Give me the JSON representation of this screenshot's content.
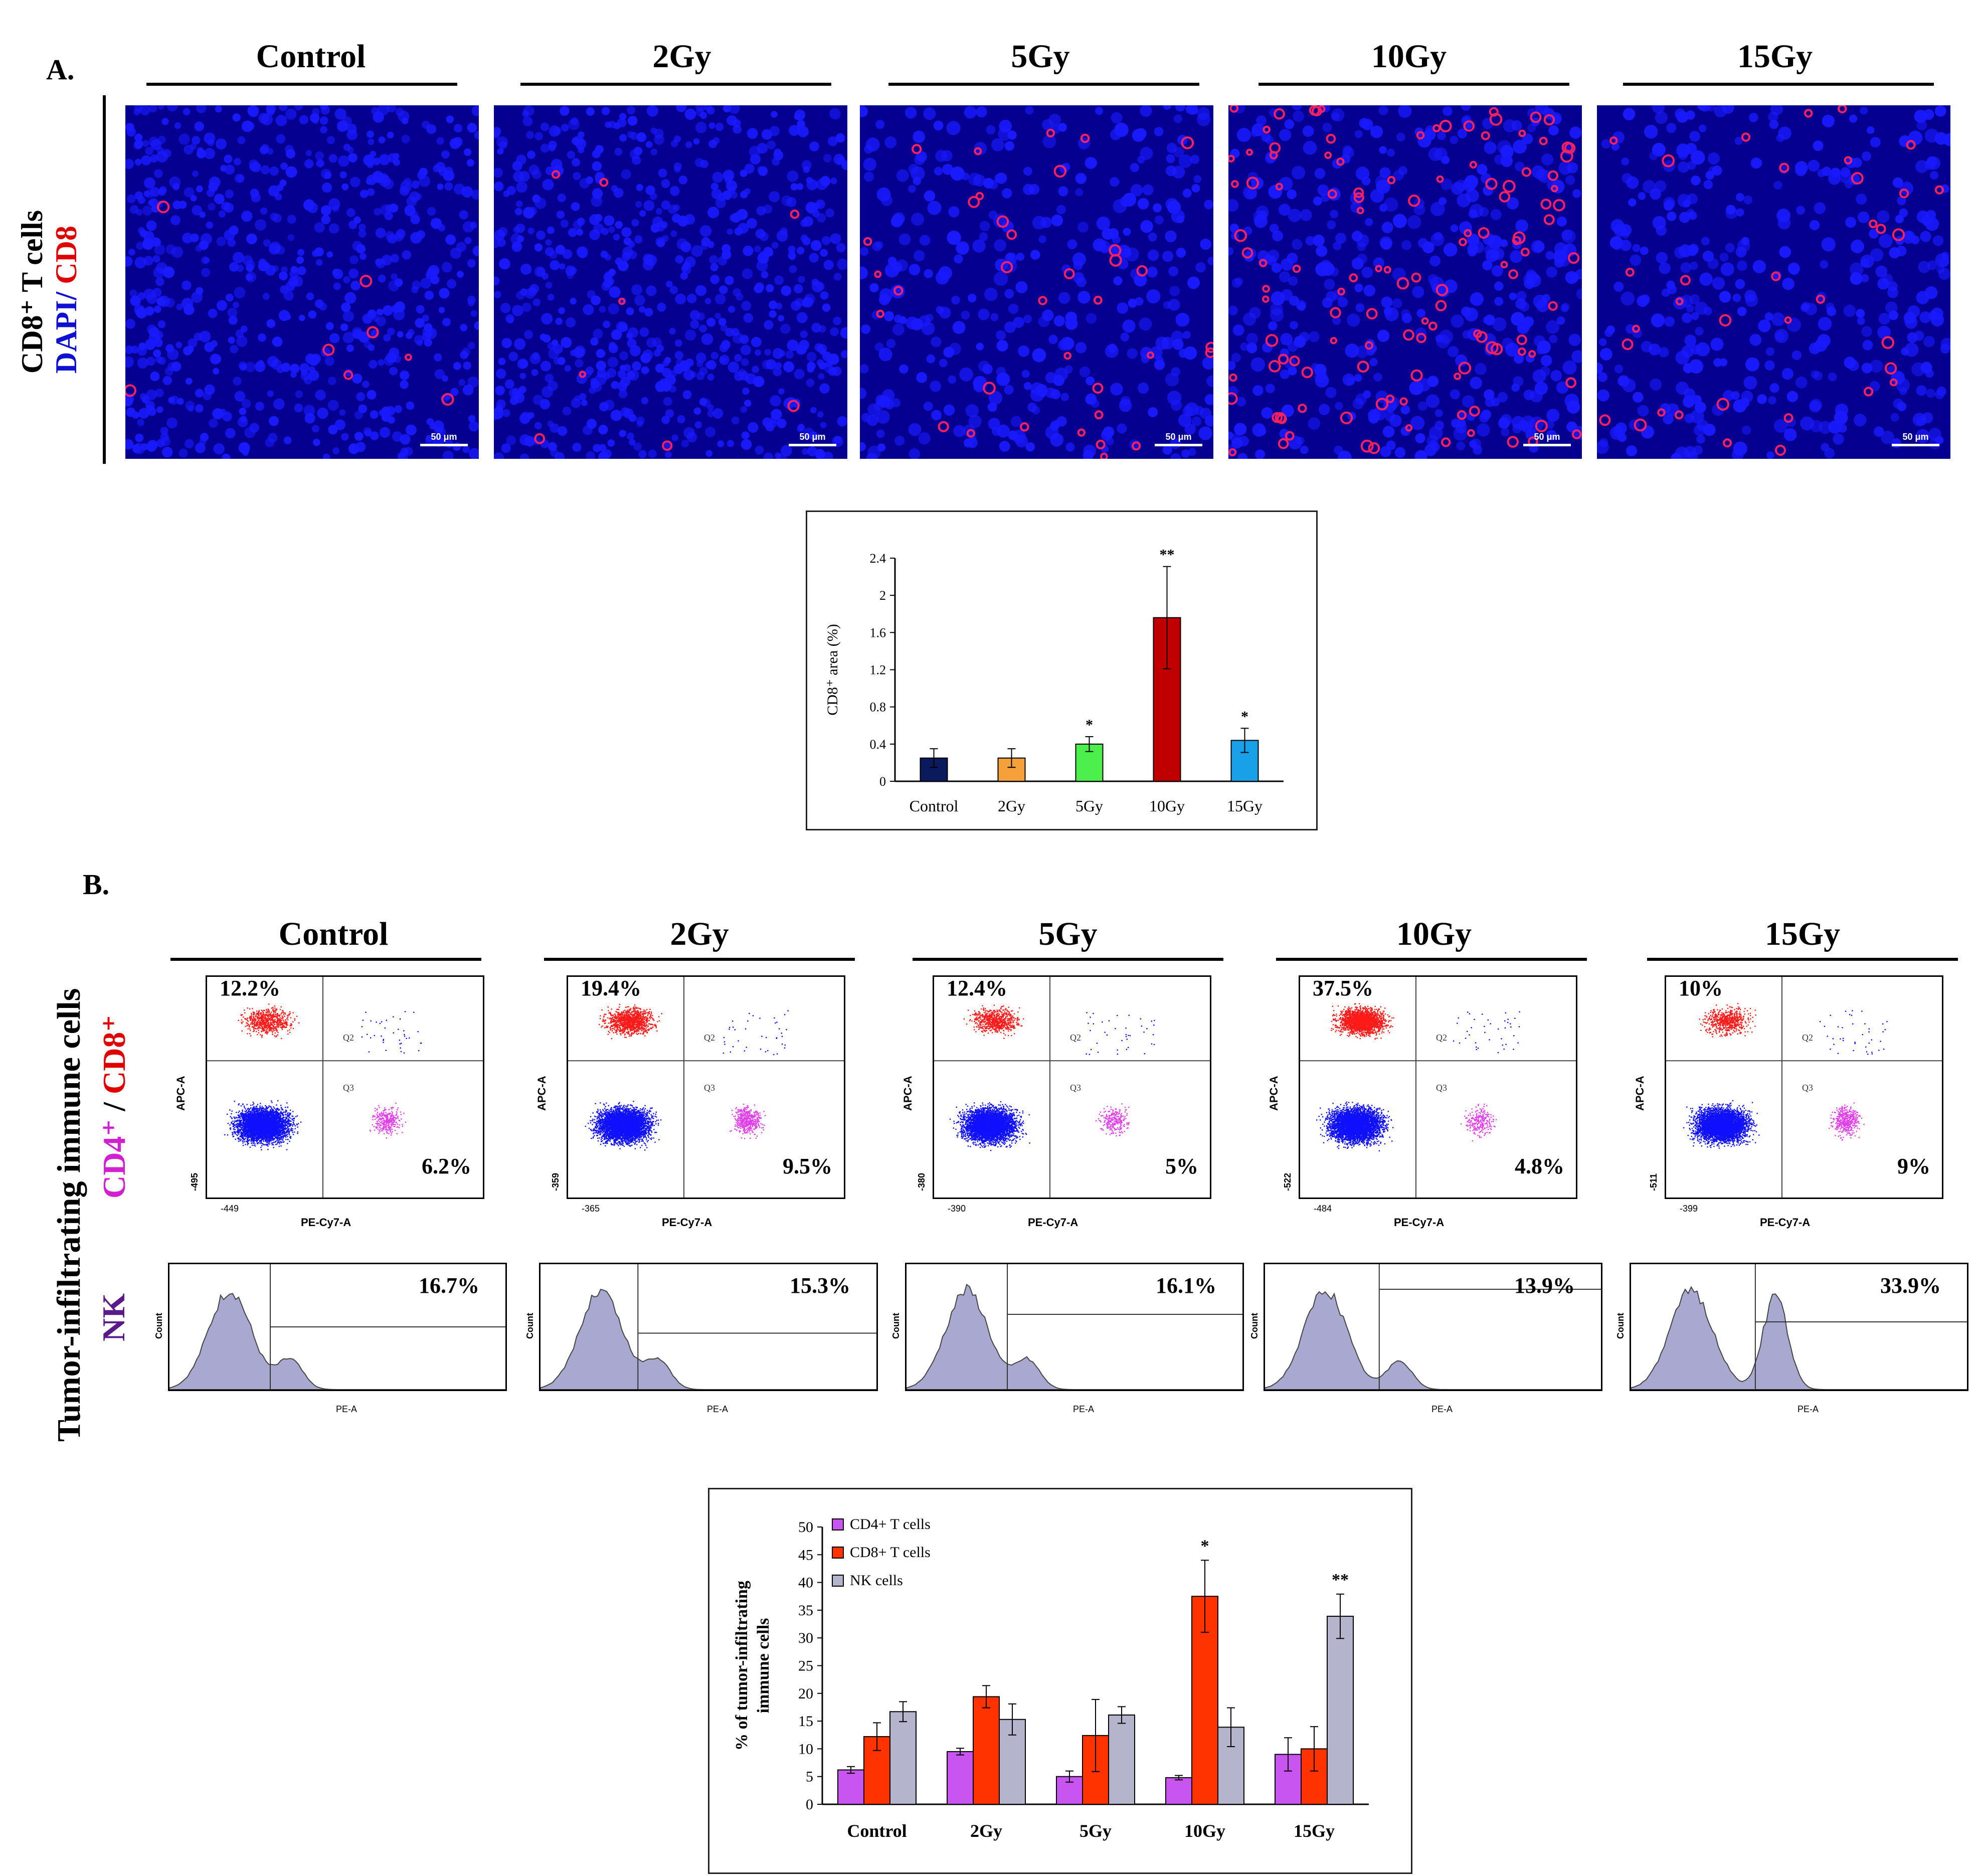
{
  "panel_a": {
    "label": "A.",
    "row_label_title": "CD8⁺ T cells",
    "row_label_dapi": "DAPI/",
    "row_label_cd8": " CD8",
    "conditions": [
      "Control",
      "2Gy",
      "5Gy",
      "10Gy",
      "15Gy"
    ],
    "scalebar": "50 μm",
    "colors": {
      "nuclei": "#1a1aff",
      "background": "#05008f",
      "cd8": "#ff2060"
    }
  },
  "panel_b": {
    "label": "B.",
    "row_label_main": "Tumor-infiltrating immune cells",
    "row_label_cd4": "CD4⁺",
    "row_label_sep": " / ",
    "row_label_cd8": "CD8⁺",
    "row_label_nk": "NK",
    "conditions": [
      "Control",
      "2Gy",
      "5Gy",
      "10Gy",
      "15Gy"
    ],
    "scatter": {
      "x_axis": "PE-Cy7-A",
      "y_axis": "APC-A",
      "quad_q2": "Q2",
      "quad_q3": "Q3",
      "cd8_pct": [
        "12.2%",
        "19.4%",
        "12.4%",
        "37.5%",
        "10%"
      ],
      "cd4_pct": [
        "6.2%",
        "9.5%",
        "5%",
        "4.8%",
        "9%"
      ],
      "x_min": [
        "-449",
        "-365",
        "-390",
        "-484",
        "-399"
      ],
      "y_min": [
        "-495",
        "-359",
        "-380",
        "-522",
        "-511"
      ],
      "colors": {
        "cd8": "#ff1a1a",
        "cd4": "#e040e8",
        "neg": "#1010ff"
      }
    },
    "histogram": {
      "x_axis": "PE-A",
      "y_axis": "Count",
      "nk_pct": [
        "16.7%",
        "15.3%",
        "16.1%",
        "13.9%",
        "33.9%"
      ],
      "fill": "#a8a8d0"
    }
  },
  "chart_data": [
    {
      "type": "bar",
      "ylabel": "CD8⁺ area (%)",
      "categories": [
        "Control",
        "2Gy",
        "5Gy",
        "10Gy",
        "15Gy"
      ],
      "values": [
        0.25,
        0.25,
        0.4,
        1.76,
        0.44
      ],
      "errors": [
        0.1,
        0.1,
        0.08,
        0.55,
        0.13
      ],
      "significance": [
        "",
        "",
        "*",
        "**",
        "*"
      ],
      "colors": [
        "#0a1a5c",
        "#f5a03a",
        "#4cef4c",
        "#c00000",
        "#18a0e8"
      ],
      "yticks": [
        "0",
        "0.4",
        "0.8",
        "1.2",
        "1.6",
        "2",
        "2.4"
      ],
      "ylim": [
        0,
        2.4
      ],
      "grid": false
    },
    {
      "type": "bar",
      "ylabel_line1": "% of tumor-infiltrating",
      "ylabel_line2": "immune cells",
      "categories": [
        "Control",
        "2Gy",
        "5Gy",
        "10Gy",
        "15Gy"
      ],
      "series": [
        {
          "name": "CD4+ T cells",
          "color": "#c855f0",
          "values": [
            6.2,
            9.5,
            5.0,
            4.8,
            9.0
          ],
          "errors": [
            0.6,
            0.6,
            1.0,
            0.4,
            3.0
          ]
        },
        {
          "name": "CD8+ T cells",
          "color": "#ff3300",
          "values": [
            12.2,
            19.4,
            12.4,
            37.5,
            10.0
          ],
          "errors": [
            2.5,
            2.0,
            6.5,
            6.5,
            4.0
          ]
        },
        {
          "name": "NK cells",
          "color": "#b4b4cc",
          "values": [
            16.7,
            15.3,
            16.1,
            13.9,
            33.9
          ],
          "errors": [
            1.8,
            2.8,
            1.5,
            3.5,
            4.0
          ]
        }
      ],
      "significance": [
        "",
        "",
        "",
        "*",
        "**"
      ],
      "yticks": [
        "0",
        "5",
        "10",
        "15",
        "20",
        "25",
        "30",
        "35",
        "40",
        "45",
        "50"
      ],
      "ylim": [
        0,
        50
      ],
      "legend": "top-left",
      "grid": false
    }
  ]
}
